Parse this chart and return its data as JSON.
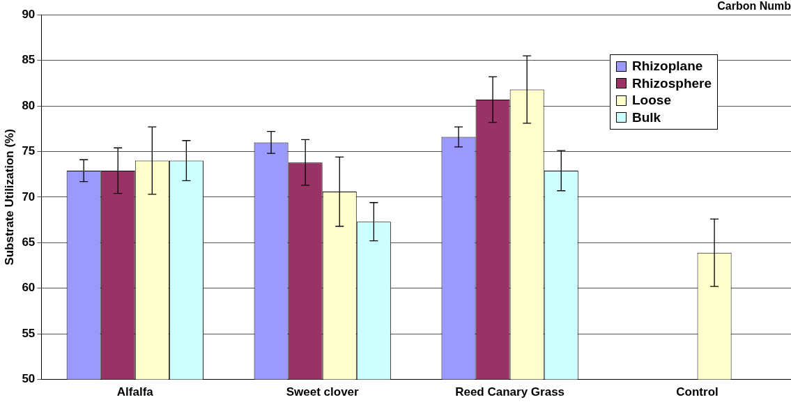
{
  "chart_data": {
    "type": "bar",
    "title": "Carbon Numb",
    "ylabel": "Substrate Utilization (%)",
    "categories": [
      "Alfalfa",
      "Sweet clover",
      "Reed Canary Grass",
      "Control"
    ],
    "series": [
      {
        "name": "Rhizoplane",
        "color": "#9999ff",
        "values": [
          72.9,
          76.0,
          76.6,
          null
        ],
        "errors": [
          1.2,
          1.2,
          1.1,
          null
        ]
      },
      {
        "name": "Rhizosphere",
        "color": "#993366",
        "values": [
          72.9,
          73.8,
          80.7,
          null
        ],
        "errors": [
          2.5,
          2.5,
          2.5,
          null
        ]
      },
      {
        "name": "Loose",
        "color": "#ffffcc",
        "values": [
          74.0,
          70.6,
          81.8,
          63.9
        ],
        "errors": [
          3.7,
          3.8,
          3.7,
          3.7
        ]
      },
      {
        "name": "Bulk",
        "color": "#ccffff",
        "values": [
          74.0,
          67.3,
          72.9,
          null
        ],
        "errors": [
          2.2,
          2.1,
          2.2,
          null
        ]
      }
    ],
    "ylim": [
      50,
      90
    ],
    "yticks": [
      50,
      55,
      60,
      65,
      70,
      75,
      80,
      85,
      90
    ],
    "grid": "y",
    "legend": "top right"
  }
}
